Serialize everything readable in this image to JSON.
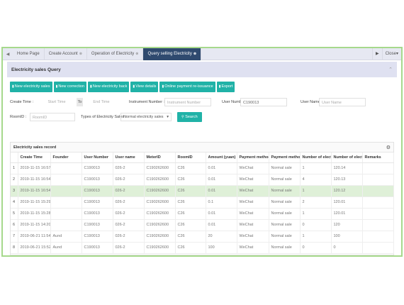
{
  "tabs": {
    "nav_left": "◀",
    "items": [
      {
        "label": "Home Page",
        "active": false,
        "closable": false
      },
      {
        "label": "Create Account",
        "active": false,
        "closable": true
      },
      {
        "label": "Operation of Electricity",
        "active": false,
        "closable": true
      },
      {
        "label": "Query selling Electricity",
        "active": true,
        "closable": true
      }
    ],
    "close_glyph": "⊗",
    "nav_right": "▶",
    "close_menu": "Close▾"
  },
  "panel": {
    "title": "Electricity sales Query",
    "collapse_glyph": "⌃"
  },
  "toolbar": [
    {
      "label": "New electricity sales",
      "icon": "▮"
    },
    {
      "label": "New correction",
      "icon": "▮"
    },
    {
      "label": "New electricity back",
      "icon": "▮"
    },
    {
      "label": "View details",
      "icon": "▮"
    },
    {
      "label": "Online payment re-issuance",
      "icon": "▮"
    },
    {
      "label": "Export",
      "icon": "▮"
    }
  ],
  "filters": {
    "create_time_label": "Create Time :",
    "start_placeholder": "Start Time",
    "to_label": "To",
    "end_placeholder": "End Time",
    "instrument_label": "Instrument Number :",
    "instrument_placeholder": "Instrument Number",
    "user_number_label": "User Number :",
    "user_number_value": "C190013",
    "user_name_label": "User Name :",
    "user_name_placeholder": "User Name",
    "room_label": "RoomID :",
    "room_placeholder": "RoomID",
    "type_label": "Types of Electricity Sales :",
    "type_value": "Normal electricity sales",
    "type_caret": "▾",
    "search_label": "Search",
    "search_icon": "🔍"
  },
  "records": {
    "title": "Electricity sales record",
    "gear_glyph": "⚙",
    "columns": [
      "",
      "Create Time",
      "Founder",
      "User Number",
      "User name",
      "MeterID",
      "RoomID",
      "Amount (yuan)",
      "Payment method",
      "Payment method",
      "Number of electric",
      "Number of electric",
      "Remarks"
    ],
    "rows": [
      {
        "cells": [
          "1",
          "2019-11-15 16:57:4",
          "",
          "C190013",
          "026-2",
          "C190262600",
          "C26",
          "0.01",
          "WeChat",
          "Normal sale",
          "1",
          "120.14",
          ""
        ],
        "highlight": false
      },
      {
        "cells": [
          "2",
          "2019-11-15 16:54:1",
          "",
          "C190013",
          "026-2",
          "C190262600",
          "C26",
          "0.01",
          "WeChat",
          "Normal sale",
          "4",
          "120.13",
          ""
        ],
        "highlight": false
      },
      {
        "cells": [
          "3",
          "2019-11-15 16:54:4",
          "",
          "C190013",
          "026-2",
          "C190262600",
          "C26",
          "0.01",
          "WeChat",
          "Normal sale",
          "1",
          "120.12",
          ""
        ],
        "highlight": true
      },
      {
        "cells": [
          "4",
          "2019-11-15 15:29:55",
          "",
          "C190013",
          "026-2",
          "C190262600",
          "C26",
          "0.1",
          "WeChat",
          "Normal sale",
          "2",
          "120.01",
          ""
        ],
        "highlight": false
      },
      {
        "cells": [
          "5",
          "2019-11-15 15:28:52",
          "",
          "C190013",
          "026-2",
          "C190262600",
          "C26",
          "0.01",
          "WeChat",
          "Normal sale",
          "1",
          "120.01",
          ""
        ],
        "highlight": false
      },
      {
        "cells": [
          "6",
          "2019-11-15 14:20:16",
          "",
          "C190013",
          "026-2",
          "C190262600",
          "C26",
          "0.01",
          "WeChat",
          "Normal sale",
          "0",
          "120",
          ""
        ],
        "highlight": false
      },
      {
        "cells": [
          "7",
          "2019-06-21 11:54:2",
          "Aund",
          "C190013",
          "026-2",
          "C190262600",
          "C26",
          "20",
          "WeChat",
          "Normal sale",
          "1",
          "100",
          ""
        ],
        "highlight": false
      },
      {
        "cells": [
          "8",
          "2019-06-21 15:52:5",
          "Aund",
          "C190013",
          "026-2",
          "C190262600",
          "C26",
          "100",
          "WeChat",
          "Normal sale",
          "0",
          "0",
          ""
        ],
        "highlight": false
      }
    ]
  }
}
